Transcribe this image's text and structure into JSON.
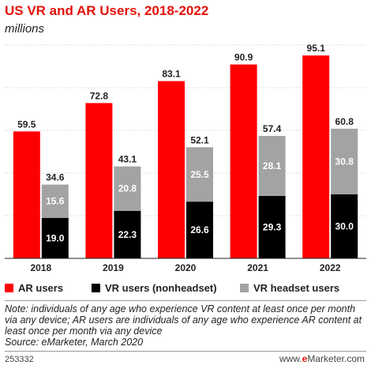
{
  "title": "US VR and AR Users, 2018-2022",
  "subtitle": "millions",
  "colors": {
    "ar": "#fe0000",
    "vr_nonheadset": "#000000",
    "vr_headset": "#a3a3a3",
    "accent": "#e4120a"
  },
  "legend": {
    "ar": "AR users",
    "vr_nonheadset": "VR users (nonheadset)",
    "vr_headset": "VR headset users"
  },
  "note": "Note: individuals of any age who experience VR content at least once per month via any device; AR users are individuals of any age who experience AR content at least once per month via any device",
  "source": "Source: eMarketer, March 2020",
  "footer": {
    "id": "253332",
    "brand_prefix": "www.",
    "brand_e": "e",
    "brand_rest": "Marketer.com"
  },
  "chart_data": {
    "type": "bar",
    "categories": [
      "2018",
      "2019",
      "2020",
      "2021",
      "2022"
    ],
    "series": [
      {
        "name": "AR users",
        "values": [
          59.5,
          72.8,
          83.1,
          90.9,
          95.1
        ]
      },
      {
        "name": "VR users (nonheadset)",
        "values": [
          19.0,
          22.3,
          26.6,
          29.3,
          30.0
        ]
      },
      {
        "name": "VR headset users",
        "values": [
          15.6,
          20.8,
          25.5,
          28.1,
          30.8
        ]
      }
    ],
    "vr_totals": [
      34.6,
      43.1,
      52.1,
      57.4,
      60.8
    ],
    "stacked_series": [
      "VR users (nonheadset)",
      "VR headset users"
    ],
    "ylim": [
      0,
      100
    ],
    "grid": true,
    "legend_position": "bottom"
  }
}
